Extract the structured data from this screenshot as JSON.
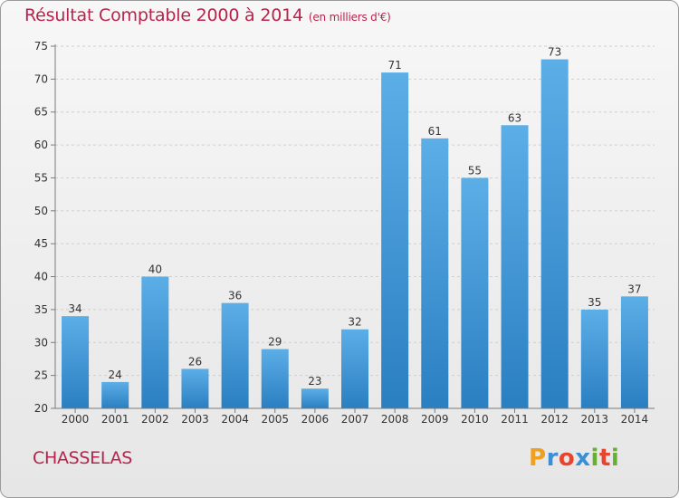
{
  "title": "Résultat Comptable 2000 à 2014",
  "subtitle": "(en milliers d'€)",
  "commune": "CHASSELAS",
  "logo": {
    "letters": [
      "P",
      "r",
      "o",
      "x",
      "i",
      "t",
      "i"
    ],
    "colors": [
      "#f0a020",
      "#3a8fd6",
      "#e9442d",
      "#3a8fd6",
      "#66b032",
      "#e9442d",
      "#66b032"
    ]
  },
  "colors": {
    "title": "#b8234d",
    "bar_top": "#5caee7",
    "bar_bottom": "#2a7fc1",
    "axis": "#7a7a7a",
    "grid": "#cfcfcf"
  },
  "chart_data": {
    "type": "bar",
    "categories": [
      "2000",
      "2001",
      "2002",
      "2003",
      "2004",
      "2005",
      "2006",
      "2007",
      "2008",
      "2009",
      "2010",
      "2011",
      "2012",
      "2013",
      "2014"
    ],
    "values": [
      34,
      24,
      40,
      26,
      36,
      29,
      23,
      32,
      71,
      61,
      55,
      63,
      73,
      35,
      37
    ],
    "ylim": [
      20,
      75
    ],
    "yticks": [
      20,
      25,
      30,
      35,
      40,
      45,
      50,
      55,
      60,
      65,
      70,
      75
    ],
    "data_labels": true,
    "grid": "horizontal-dashed"
  }
}
